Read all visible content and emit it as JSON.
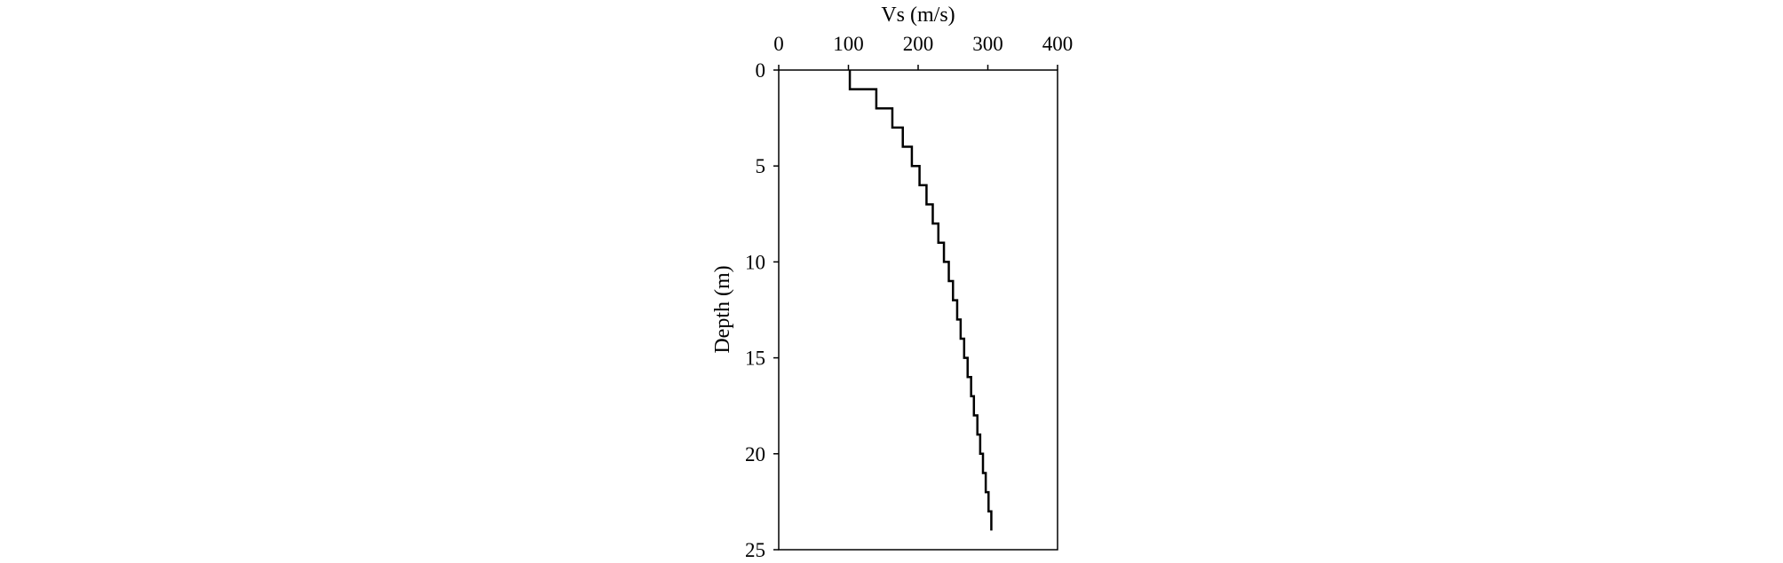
{
  "chart_data": {
    "type": "line",
    "title": "",
    "xlabel": "Vs (m/s)",
    "ylabel": "Depth (m)",
    "x_axis_position": "top",
    "y_axis_inverted": true,
    "xlim": [
      0,
      400
    ],
    "ylim": [
      0,
      25
    ],
    "xticks": [
      "0",
      "100",
      "200",
      "300",
      "400"
    ],
    "yticks": [
      "0",
      "5",
      "10",
      "15",
      "20",
      "25"
    ],
    "grid": false,
    "legend": "none",
    "line_color": "#000000",
    "series": [
      {
        "step_profile": true,
        "layers": [
          {
            "top": 0,
            "bottom": 1,
            "vs": 102
          },
          {
            "top": 1,
            "bottom": 2,
            "vs": 140
          },
          {
            "top": 2,
            "bottom": 3,
            "vs": 163
          },
          {
            "top": 3,
            "bottom": 4,
            "vs": 178
          },
          {
            "top": 4,
            "bottom": 5,
            "vs": 191
          },
          {
            "top": 5,
            "bottom": 6,
            "vs": 202
          },
          {
            "top": 6,
            "bottom": 7,
            "vs": 212
          },
          {
            "top": 7,
            "bottom": 8,
            "vs": 221
          },
          {
            "top": 8,
            "bottom": 9,
            "vs": 229
          },
          {
            "top": 9,
            "bottom": 10,
            "vs": 237
          },
          {
            "top": 10,
            "bottom": 11,
            "vs": 244
          },
          {
            "top": 11,
            "bottom": 12,
            "vs": 250
          },
          {
            "top": 12,
            "bottom": 13,
            "vs": 256
          },
          {
            "top": 13,
            "bottom": 14,
            "vs": 261
          },
          {
            "top": 14,
            "bottom": 15,
            "vs": 266
          },
          {
            "top": 15,
            "bottom": 16,
            "vs": 271
          },
          {
            "top": 16,
            "bottom": 17,
            "vs": 276
          },
          {
            "top": 17,
            "bottom": 18,
            "vs": 280
          },
          {
            "top": 18,
            "bottom": 19,
            "vs": 285
          },
          {
            "top": 19,
            "bottom": 20,
            "vs": 289
          },
          {
            "top": 20,
            "bottom": 21,
            "vs": 293
          },
          {
            "top": 21,
            "bottom": 22,
            "vs": 297
          },
          {
            "top": 22,
            "bottom": 23,
            "vs": 301
          },
          {
            "top": 23,
            "bottom": 24,
            "vs": 305
          }
        ]
      }
    ]
  }
}
